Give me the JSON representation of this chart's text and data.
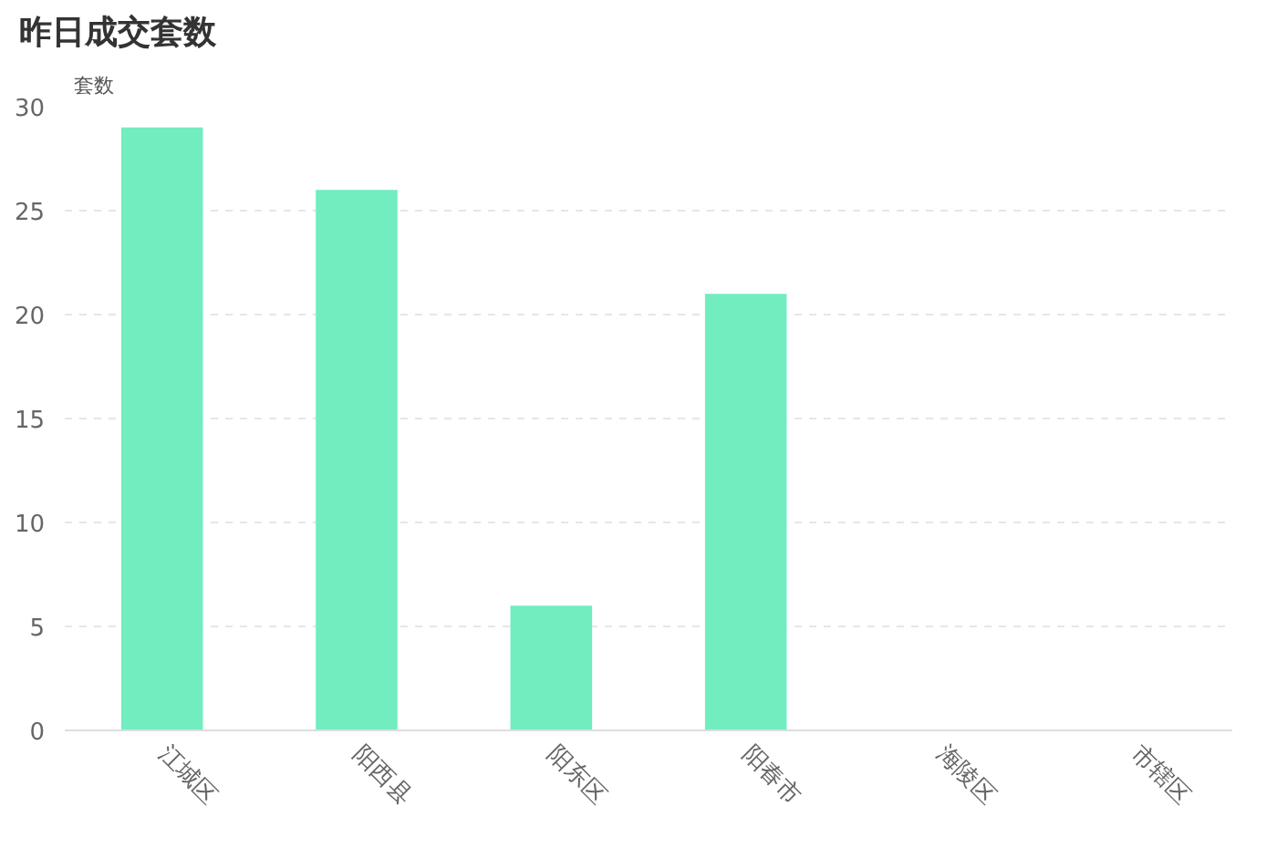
{
  "chart_data": {
    "type": "bar",
    "title": "昨日成交套数",
    "ylabel": "套数",
    "categories": [
      "江城区",
      "阳西县",
      "阳东区",
      "阳春市",
      "海陵区",
      "市辖区"
    ],
    "values": [
      29,
      26,
      6,
      21,
      0,
      0
    ],
    "color": "#72edc0",
    "ylim": [
      0,
      30
    ],
    "yticks": [
      0,
      5,
      10,
      15,
      20,
      25,
      30
    ],
    "grid": "y"
  }
}
